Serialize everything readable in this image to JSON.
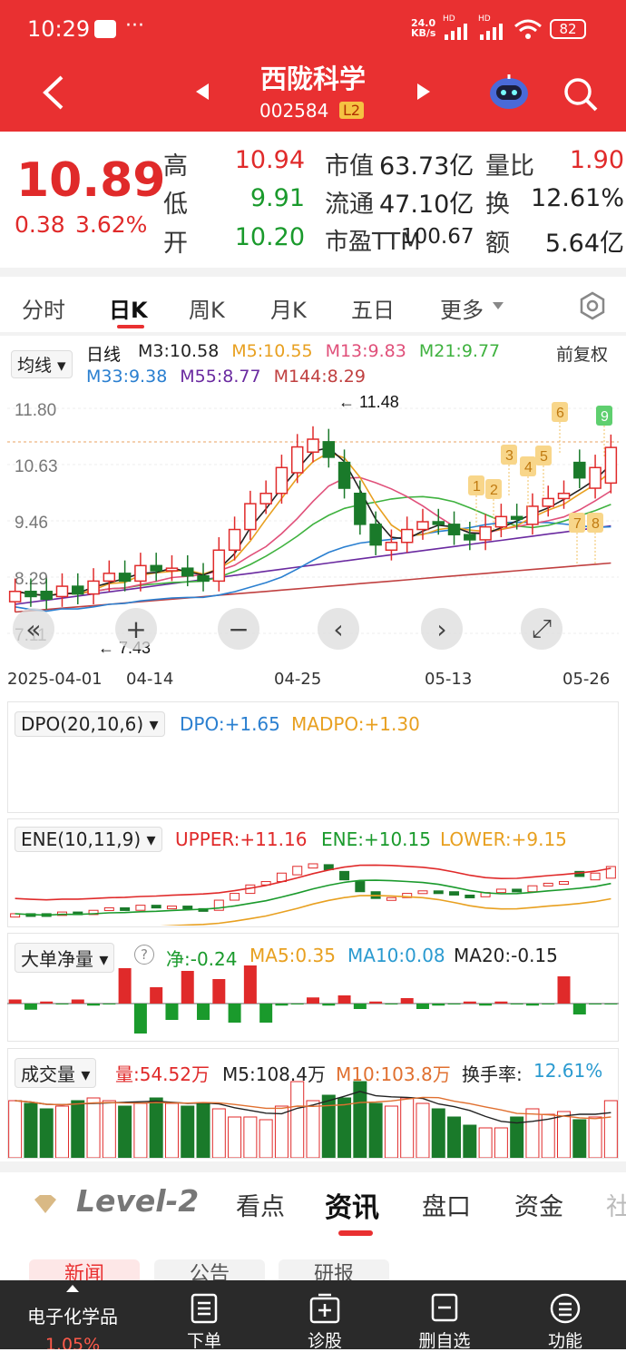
{
  "status_bar": {
    "time": "10:29",
    "dots": "···",
    "net_speed_value": "24.0",
    "net_speed_unit": "KB/s",
    "hd1": "HD",
    "hd2": "HD",
    "battery": "82"
  },
  "header": {
    "stock_name": "西陇科学",
    "stock_code": "002584",
    "level_badge": "L2"
  },
  "quote": {
    "price": "10.89",
    "change": "0.38",
    "change_pct": "3.62%",
    "rows": [
      {
        "l1": "高",
        "v1": "10.94",
        "l2": "市值",
        "v2": "63.73亿",
        "l3": "量比",
        "v3": "1.90"
      },
      {
        "l1": "低",
        "v1": "9.91",
        "l2": "流通",
        "v2": "47.10亿",
        "l3": "换",
        "v3": "12.61%"
      },
      {
        "l1": "开",
        "v1": "10.20",
        "l2": "市盈TTM",
        "v2": "100.67",
        "l3": "额",
        "v3": "5.64亿"
      }
    ]
  },
  "tabs": [
    "分时",
    "日K",
    "周K",
    "月K",
    "五日",
    "更多"
  ],
  "kline": {
    "ma_button": "均线",
    "period_label": "日线",
    "adjust_label": "前复权",
    "ma_row1": [
      {
        "text": "M3:10.58",
        "color": "#222222"
      },
      {
        "text": "M5:10.55",
        "color": "#e8a020"
      },
      {
        "text": "M13:9.83",
        "color": "#e0507a"
      },
      {
        "text": "M21:9.77",
        "color": "#3fb23f"
      }
    ],
    "ma_row2": [
      {
        "text": "M33:9.38",
        "color": "#2a7fd0"
      },
      {
        "text": "M55:8.77",
        "color": "#6a2aa0"
      },
      {
        "text": "M144:8.29",
        "color": "#c04040"
      }
    ],
    "y_ticks": [
      "11.80",
      "10.63",
      "9.46",
      "8.29",
      "7.11"
    ],
    "high_label": "11.48",
    "low_label": "7.43",
    "x_dates": [
      "2025-04-01",
      "04-14",
      "04-25",
      "05-13",
      "05-26"
    ],
    "markers": [
      "1",
      "2",
      "3",
      "4",
      "5",
      "6",
      "7",
      "8",
      "9"
    ]
  },
  "dpo": {
    "button": "DPO(20,10,6)",
    "dpo": "DPO:+1.65",
    "madpo": "MADPO:+1.30"
  },
  "ene": {
    "button": "ENE(10,11,9)",
    "upper": "UPPER:+11.16",
    "ene": "ENE:+10.15",
    "lower": "LOWER:+9.15"
  },
  "bigorder": {
    "button": "大单净量",
    "help": "?",
    "net": "净:-0.24",
    "ma5": "MA5:0.35",
    "ma10": "MA10:0.08",
    "ma20": "MA20:-0.15"
  },
  "volume": {
    "button": "成交量",
    "vol": "量:54.52万",
    "m5": "M5:108.4万",
    "m10": "M10:103.8万",
    "turnover_label": "换手率:",
    "turnover": "12.61%"
  },
  "info_tabs": {
    "level2": "Level-2",
    "items": [
      "看点",
      "资讯",
      "盘口",
      "资金",
      "社"
    ]
  },
  "sub_chips": [
    "新闻",
    "公告",
    "研报"
  ],
  "bottom_nav": {
    "sector_name": "电子化学品",
    "sector_pct": "1.05%",
    "items": [
      "下单",
      "诊股",
      "删自选",
      "功能"
    ]
  },
  "colors": {
    "accent_red": "#e93031",
    "up_red": "#e02a2a",
    "down_green": "#1a8a2a"
  }
}
